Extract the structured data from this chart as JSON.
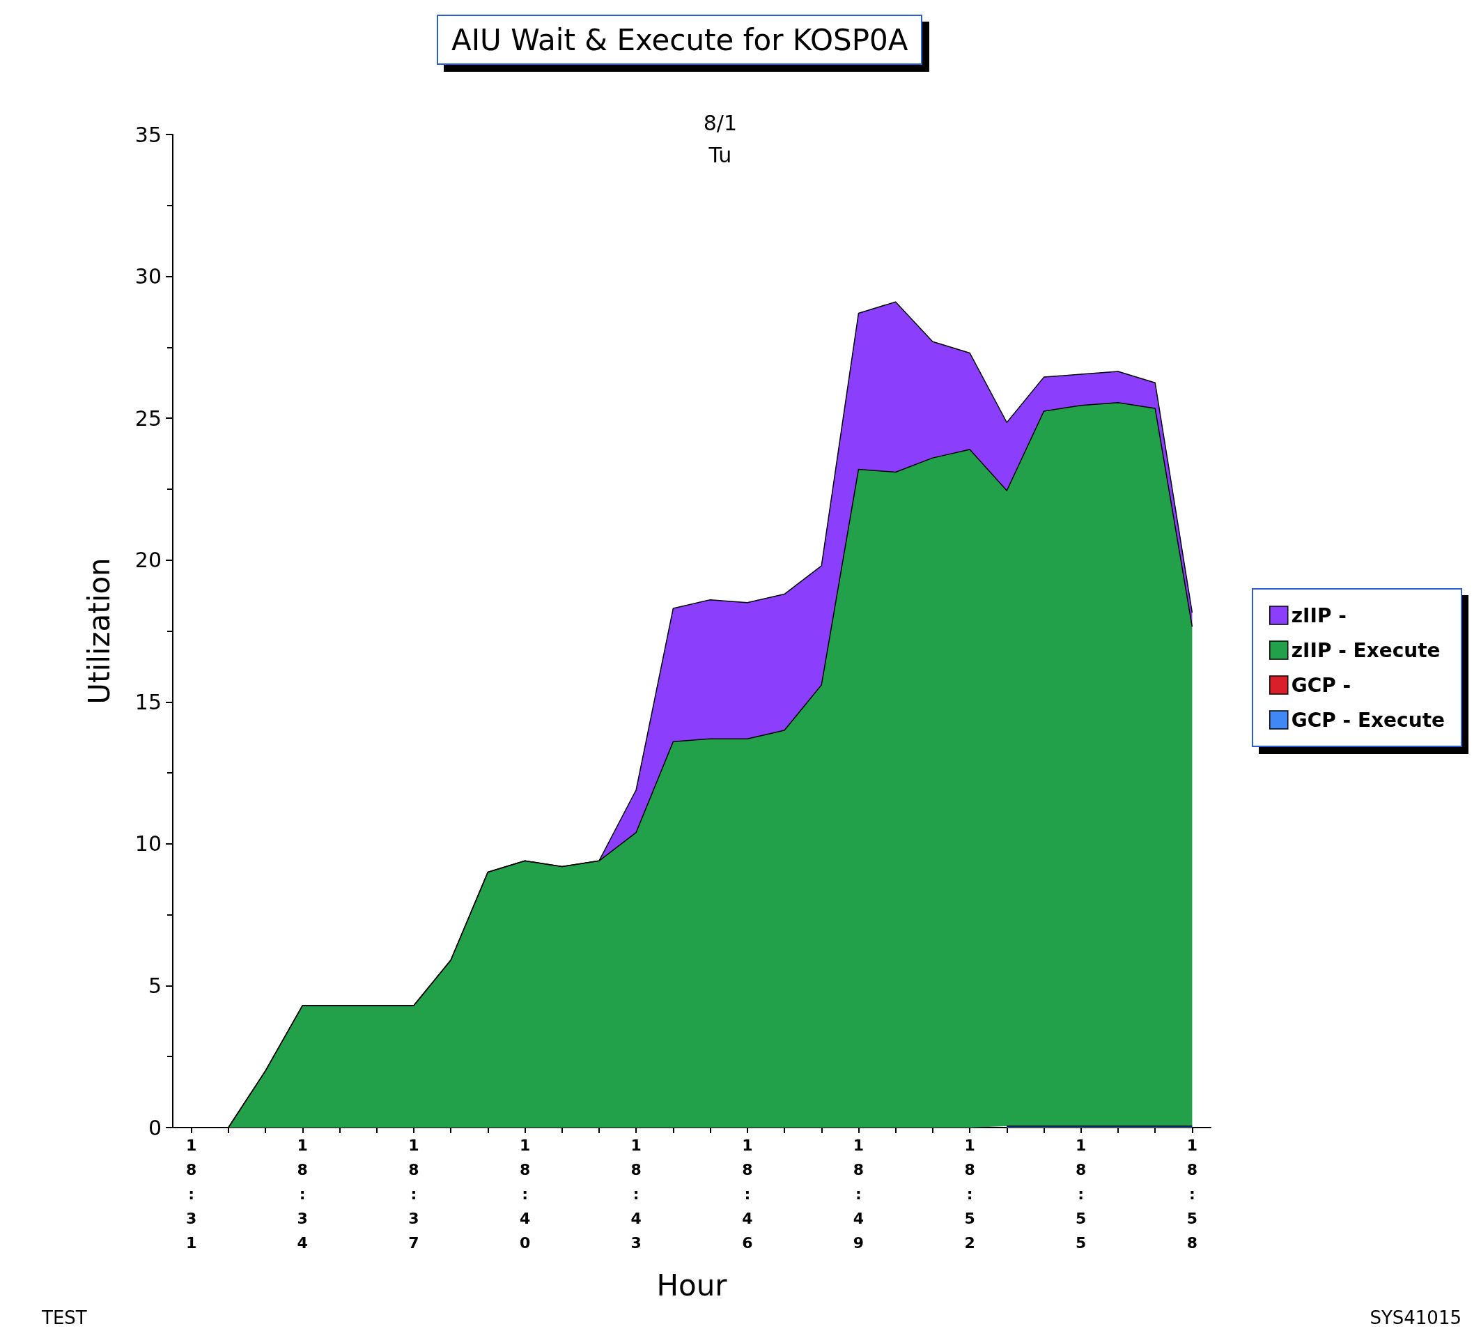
{
  "chart_data": {
    "type": "area",
    "stacked": true,
    "title": "AIU Wait & Execute for KOSP0A",
    "subtitle": "8/1\nTu",
    "xlabel": "Hour",
    "ylabel": "Utilization",
    "categories": [
      "18:31",
      null,
      null,
      "18:34",
      null,
      null,
      "18:37",
      null,
      null,
      "18:40",
      null,
      null,
      "18:43",
      null,
      null,
      "18:46",
      null,
      null,
      "18:49",
      null,
      null,
      "18:52",
      null,
      null,
      "18:55",
      null,
      null,
      "18:58"
    ],
    "series": [
      {
        "name": "GCP - Execute",
        "color": "#3f88f5",
        "values": [
          null,
          null,
          null,
          null,
          null,
          null,
          null,
          null,
          null,
          null,
          null,
          null,
          null,
          null,
          null,
          null,
          null,
          null,
          null,
          null,
          null,
          null,
          0.05,
          0.05,
          0.05,
          0.05,
          0.05,
          0.05
        ]
      },
      {
        "name": "GCP -",
        "color": "#d9202a",
        "values": [
          null,
          null,
          null,
          null,
          null,
          null,
          null,
          null,
          null,
          null,
          null,
          null,
          null,
          null,
          null,
          null,
          null,
          null,
          null,
          null,
          null,
          null,
          null,
          null,
          null,
          null,
          null,
          null
        ]
      },
      {
        "name": "zIIP - Execute",
        "color": "#23a04a",
        "values": [
          null,
          0,
          2.0,
          4.3,
          4.3,
          4.3,
          4.3,
          5.9,
          9.0,
          9.4,
          9.2,
          9.4,
          10.4,
          13.6,
          13.7,
          13.7,
          14.0,
          15.6,
          23.2,
          23.1,
          23.6,
          23.9,
          22.4,
          25.2,
          25.4,
          25.5,
          25.3,
          17.6
        ]
      },
      {
        "name": "zIIP -",
        "color": "#8b3ffc",
        "values": [
          null,
          0,
          0,
          0,
          0,
          0,
          0,
          0,
          0,
          0,
          0,
          0,
          1.5,
          4.7,
          4.9,
          4.8,
          4.8,
          4.2,
          5.5,
          6.0,
          4.1,
          3.4,
          2.4,
          1.2,
          1.1,
          1.1,
          0.9,
          0.5
        ]
      }
    ],
    "ylim": [
      0,
      35
    ],
    "yticks": [
      0,
      5,
      10,
      15,
      20,
      25,
      30,
      35
    ],
    "grid": false,
    "legend": "right",
    "annotations": [
      "TEST",
      "SYS41015"
    ]
  }
}
